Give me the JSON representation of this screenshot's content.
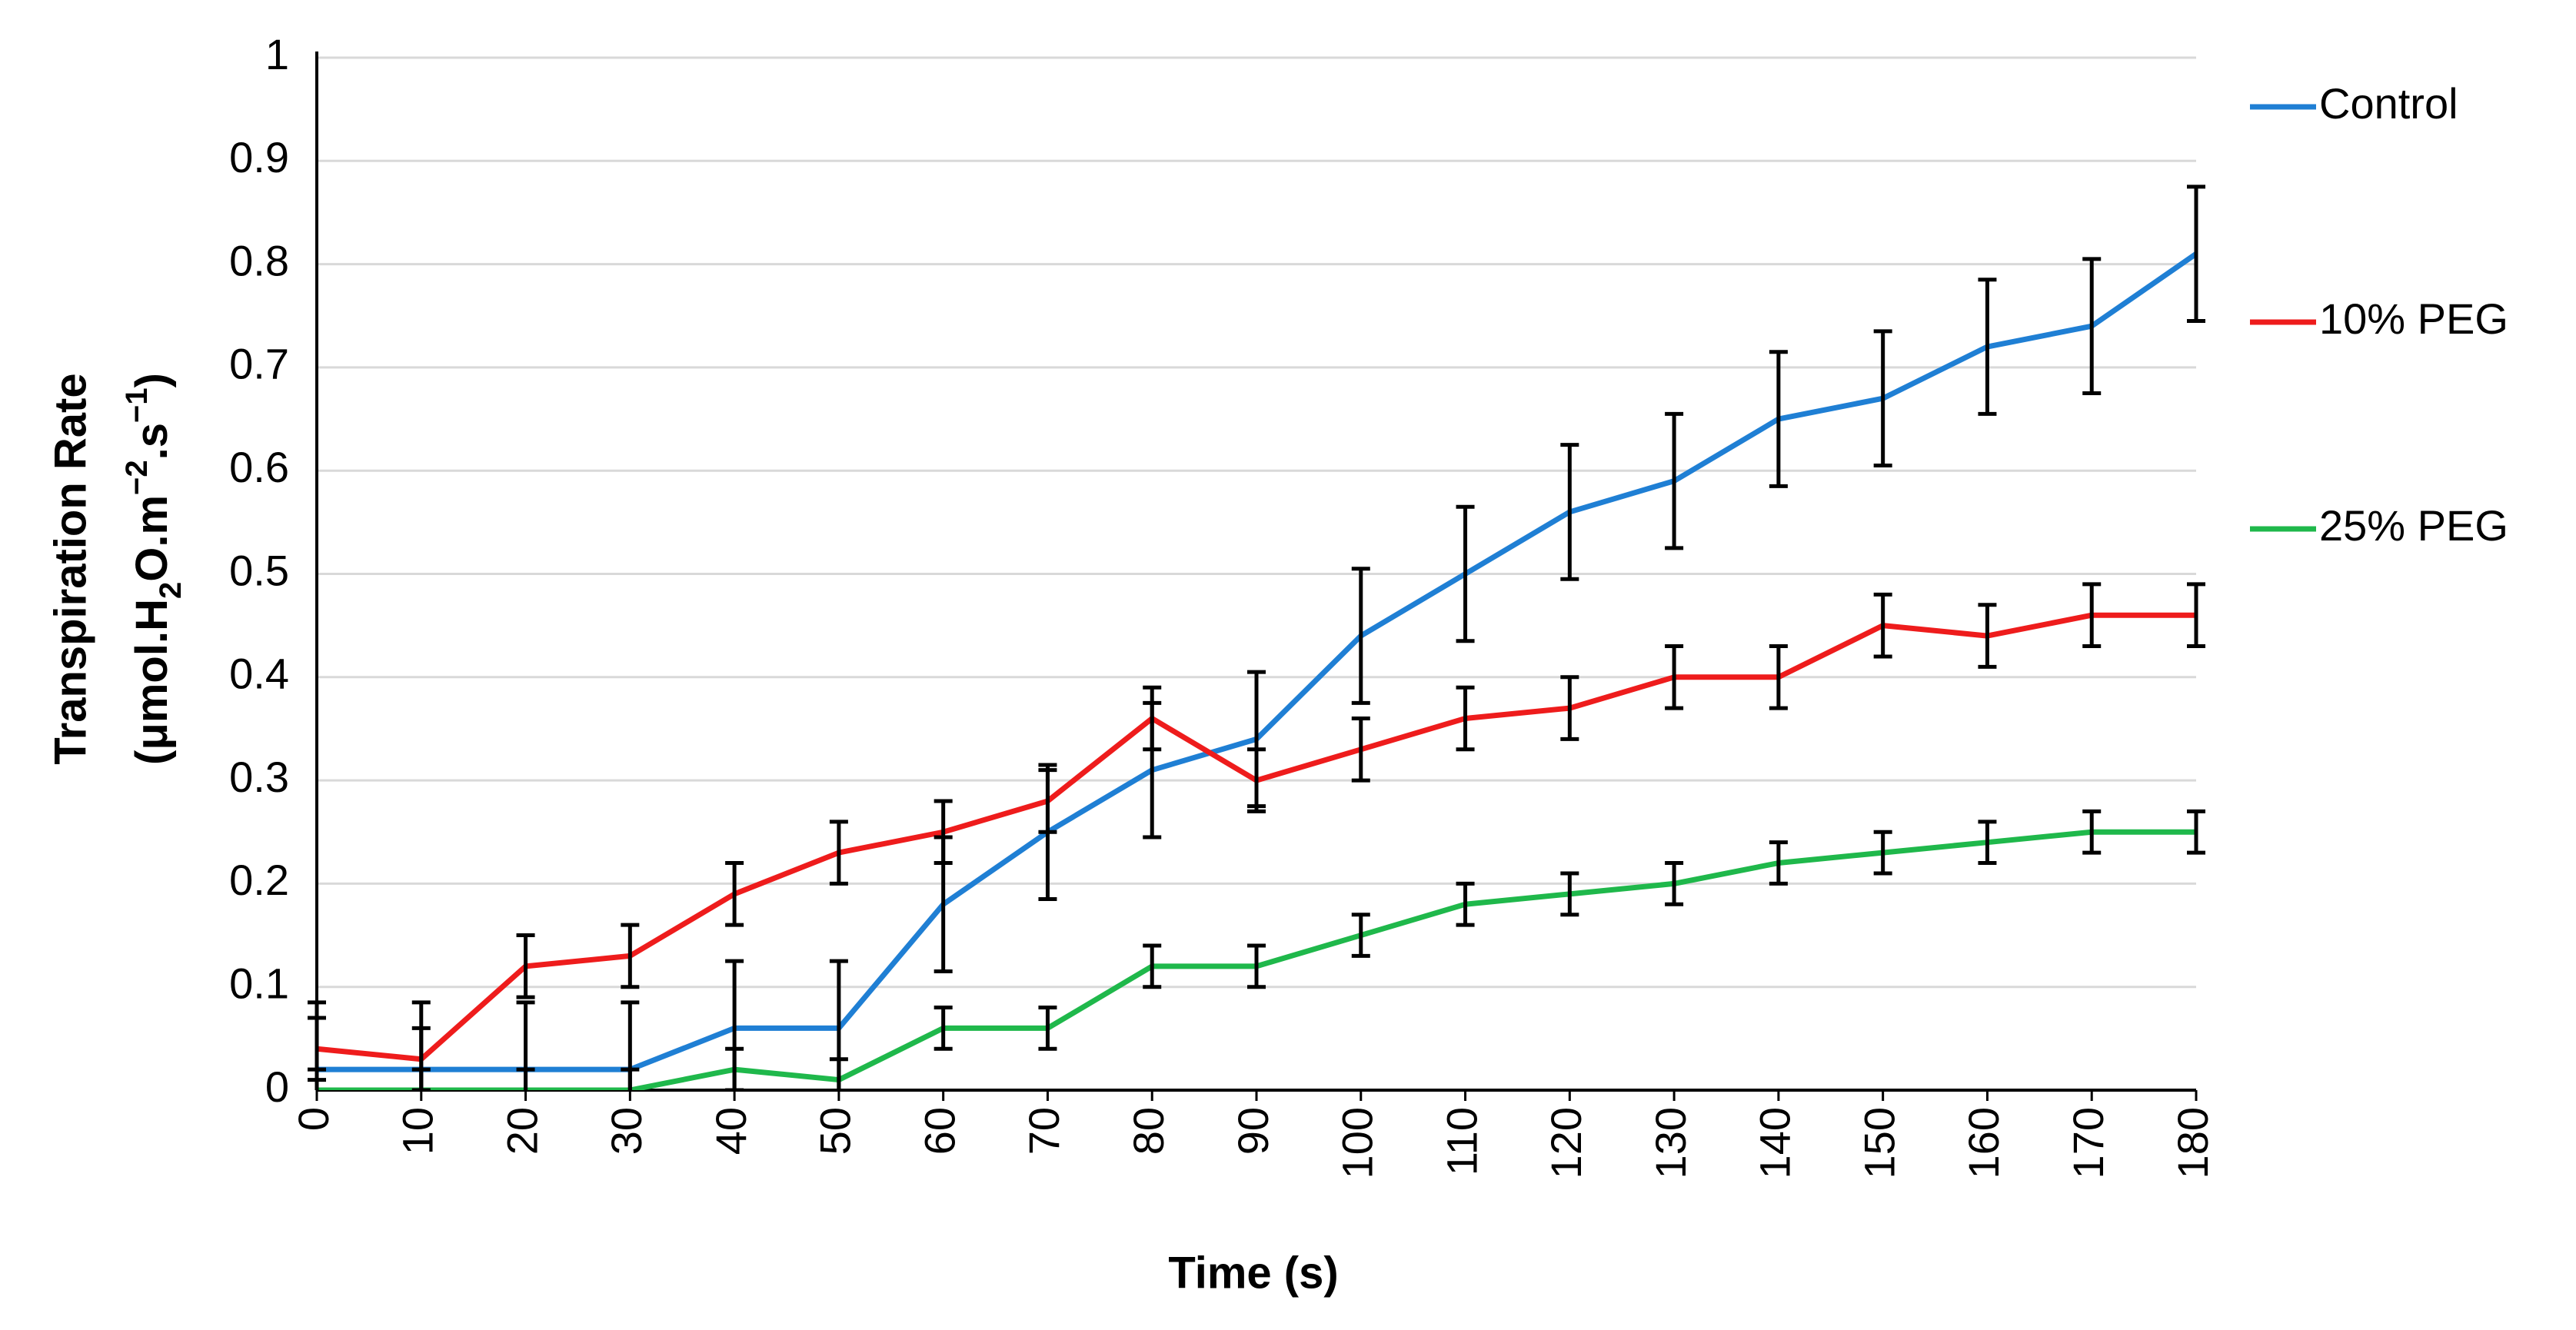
{
  "chart_data": {
    "type": "line",
    "xlabel": "Time (s)",
    "ylabel": "Transpiration Rate",
    "ylabel_unit": [
      "(μmol.H",
      "2",
      "O.m",
      "−2",
      ".s",
      "−1",
      ")"
    ],
    "x": [
      0,
      10,
      20,
      30,
      40,
      50,
      60,
      70,
      80,
      90,
      100,
      110,
      120,
      130,
      140,
      150,
      160,
      170,
      180
    ],
    "xlim": [
      0,
      180
    ],
    "xticks": [
      0,
      10,
      20,
      30,
      40,
      50,
      60,
      70,
      80,
      90,
      100,
      110,
      120,
      130,
      140,
      150,
      160,
      170,
      180
    ],
    "ylim": [
      0,
      1
    ],
    "yticks": [
      0,
      0.1,
      0.2,
      0.3,
      0.4,
      0.5,
      0.6,
      0.7,
      0.8,
      0.9,
      1
    ],
    "grid": true,
    "legend": "right",
    "series": [
      {
        "name": "Control",
        "color": "#1f7fd4",
        "values": [
          0.02,
          0.02,
          0.02,
          0.02,
          0.06,
          0.06,
          0.18,
          0.25,
          0.31,
          0.34,
          0.44,
          0.5,
          0.56,
          0.59,
          0.65,
          0.67,
          0.72,
          0.74,
          0.81
        ],
        "errors": [
          0.065,
          0.065,
          0.065,
          0.065,
          0.065,
          0.065,
          0.065,
          0.065,
          0.065,
          0.065,
          0.065,
          0.065,
          0.065,
          0.065,
          0.065,
          0.065,
          0.065,
          0.065,
          0.065
        ]
      },
      {
        "name": "10% PEG",
        "color": "#ee1c1c",
        "values": [
          0.04,
          0.03,
          0.12,
          0.13,
          0.19,
          0.23,
          0.25,
          0.28,
          0.36,
          0.3,
          0.33,
          0.36,
          0.37,
          0.4,
          0.4,
          0.45,
          0.44,
          0.46,
          0.46
        ],
        "errors": [
          0.03,
          0.03,
          0.03,
          0.03,
          0.03,
          0.03,
          0.03,
          0.03,
          0.03,
          0.03,
          0.03,
          0.03,
          0.03,
          0.03,
          0.03,
          0.03,
          0.03,
          0.03,
          0.03
        ]
      },
      {
        "name": "25% PEG",
        "color": "#1fb84b",
        "values": [
          0,
          0,
          0,
          0,
          0.02,
          0.01,
          0.06,
          0.06,
          0.12,
          0.12,
          0.15,
          0.18,
          0.19,
          0.2,
          0.22,
          0.23,
          0.24,
          0.25,
          0.25
        ],
        "errors": [
          0.02,
          0.02,
          0.02,
          0.02,
          0.02,
          0.02,
          0.02,
          0.02,
          0.02,
          0.02,
          0.02,
          0.02,
          0.02,
          0.02,
          0.02,
          0.02,
          0.02,
          0.02,
          0.02
        ]
      }
    ]
  }
}
